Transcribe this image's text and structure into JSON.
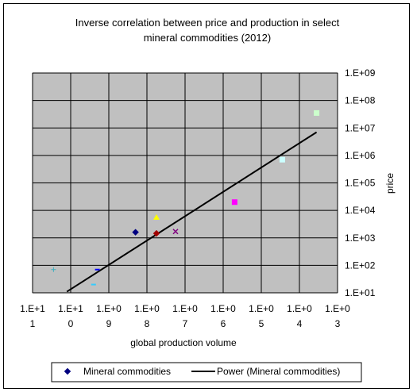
{
  "chart_data": {
    "type": "scatter",
    "title": "Inverse correlation between price and production in select mineral commodities (2012)",
    "title_lines": [
      "Inverse correlation between price and production in select",
      "mineral commodities (2012)"
    ],
    "xlabel": "global production volume",
    "ylabel": "price",
    "x_axis": {
      "scale": "log",
      "reversed": true,
      "tick_labels": [
        {
          "top": "1.E+1",
          "bottom": "1"
        },
        {
          "top": "1.E+1",
          "bottom": "0"
        },
        {
          "top": "1.E+0",
          "bottom": "9"
        },
        {
          "top": "1.E+0",
          "bottom": "8"
        },
        {
          "top": "1.E+0",
          "bottom": "7"
        },
        {
          "top": "1.E+0",
          "bottom": "6"
        },
        {
          "top": "1.E+0",
          "bottom": "5"
        },
        {
          "top": "1.E+0",
          "bottom": "4"
        },
        {
          "top": "1.E+0",
          "bottom": "3"
        }
      ]
    },
    "y_axis": {
      "scale": "log",
      "ylim": [
        10,
        1000000000
      ],
      "tick_values": [
        10,
        100,
        1000,
        10000,
        100000,
        1000000,
        10000000,
        100000000,
        1000000000
      ],
      "tick_labels": [
        "1.E+01",
        "1.E+02",
        "1.E+03",
        "1.E+04",
        "1.E+05",
        "1.E+06",
        "1.E+07",
        "1.E+08",
        "1.E+09"
      ]
    },
    "grid": true,
    "legend_placement": "bottom",
    "plot_background": "#c0c0c0",
    "points": [
      {
        "x_exp": 10.45,
        "y": 70,
        "marker": "plus",
        "color": "#40b0c0"
      },
      {
        "x_exp": 9.3,
        "y": 70,
        "marker": "dash",
        "color": "#0000ff"
      },
      {
        "x_exp": 9.4,
        "y": 20,
        "marker": "dash",
        "color": "#33ccff"
      },
      {
        "x_exp": 8.3,
        "y": 1600,
        "marker": "diamond",
        "color": "#000080"
      },
      {
        "x_exp": 7.75,
        "y": 5600,
        "marker": "triangle",
        "color": "#ffff00"
      },
      {
        "x_exp": 7.75,
        "y": 1450,
        "marker": "diamond",
        "color": "#a00000"
      },
      {
        "x_exp": 7.25,
        "y": 1700,
        "marker": "x",
        "color": "#800080"
      },
      {
        "x_exp": 5.7,
        "y": 20000,
        "marker": "square",
        "color": "#ff00ff"
      },
      {
        "x_exp": 4.45,
        "y": 700000,
        "marker": "square",
        "color": "#ccffff"
      },
      {
        "x_exp": 3.55,
        "y": 35000000,
        "marker": "square",
        "color": "#ccffcc"
      }
    ],
    "trendline": {
      "name": "Power (Mineral commodities)",
      "type": "power",
      "from": {
        "x_exp": 10.1,
        "y": 11
      },
      "to": {
        "x_exp": 3.55,
        "y": 7000000
      },
      "color": "#000000"
    },
    "legend": [
      {
        "label": "Mineral commodities",
        "marker": "diamond",
        "color": "#000080"
      },
      {
        "label": "Power (Mineral commodities)",
        "marker": "line",
        "color": "#000000"
      }
    ]
  }
}
